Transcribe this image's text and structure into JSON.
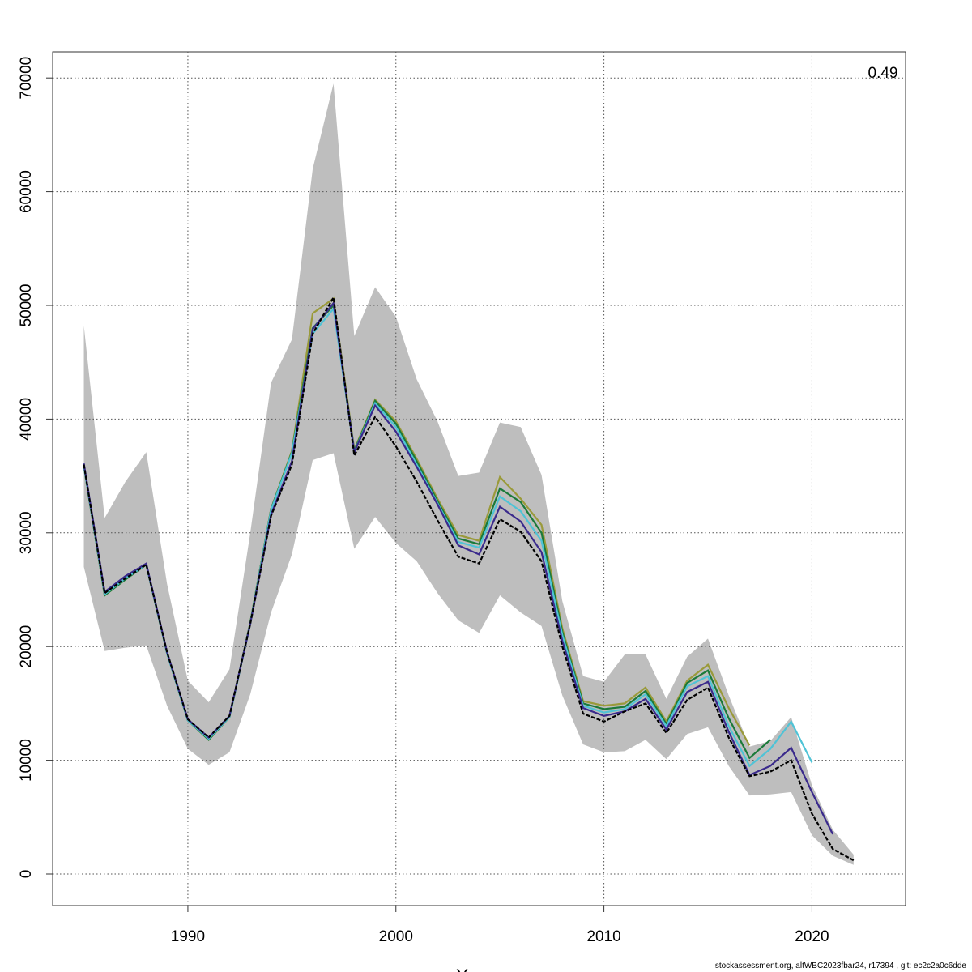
{
  "chart_data": {
    "type": "line",
    "x": [
      1985,
      1986,
      1987,
      1988,
      1989,
      1990,
      1991,
      1992,
      1993,
      1994,
      1995,
      1996,
      1997,
      1998,
      1999,
      2000,
      2001,
      2002,
      2003,
      2004,
      2005,
      2006,
      2007,
      2008,
      2009,
      2010,
      2011,
      2012,
      2013,
      2014,
      2015,
      2016,
      2017,
      2018,
      2019,
      2020,
      2021,
      2022
    ],
    "xlabel": "Years",
    "annotation": "0.49",
    "footer": "stockassessment.org, altWBC2023fbar24, r17394 , git: ec2c2a0c6dde",
    "xlim": [
      1983.5,
      2024.5
    ],
    "ylim": [
      -2778,
      72293
    ],
    "xticks": [
      1990,
      2000,
      2010,
      2020
    ],
    "yticks": [
      0,
      10000,
      20000,
      30000,
      40000,
      50000,
      60000,
      70000
    ],
    "grid": true,
    "band": {
      "color": "#bebebe",
      "lower": [
        27000,
        19600,
        19900,
        20100,
        14800,
        11000,
        9600,
        10700,
        15800,
        23000,
        28100,
        36400,
        37000,
        28600,
        31400,
        29100,
        27500,
        24700,
        22300,
        21200,
        24500,
        23000,
        21800,
        15700,
        11400,
        10700,
        10800,
        11800,
        10100,
        12300,
        12900,
        9500,
        6900,
        7000,
        7200,
        3400,
        1600,
        800
      ],
      "upper": [
        48200,
        31300,
        34500,
        37100,
        25500,
        17000,
        15100,
        18000,
        30000,
        43200,
        47000,
        62000,
        69500,
        47300,
        51600,
        49000,
        43500,
        39800,
        35000,
        35300,
        39700,
        39300,
        35100,
        24000,
        17400,
        16900,
        19300,
        19300,
        15400,
        19100,
        20700,
        15700,
        11200,
        11700,
        13800,
        7800,
        3900,
        1700
      ]
    },
    "series": [
      {
        "color": "#9a9a3a",
        "values": [
          35900,
          24500,
          25900,
          27200,
          19400,
          13500,
          11800,
          13800,
          22100,
          32100,
          37200,
          49300,
          50600,
          37300,
          41700,
          39800,
          36500,
          33000,
          29800,
          29300,
          34900,
          33000,
          30700,
          21600,
          15200,
          14800,
          15000,
          16400,
          13400,
          17000,
          18400,
          14600,
          11300,
          null,
          null,
          null,
          null,
          null
        ]
      },
      {
        "color": "#1b7a3a",
        "values": [
          35900,
          24500,
          25900,
          27200,
          19400,
          13500,
          11800,
          13800,
          22100,
          32100,
          37100,
          48000,
          50000,
          37200,
          41600,
          39600,
          36300,
          32800,
          29500,
          29000,
          33900,
          32700,
          30000,
          21300,
          15000,
          14500,
          14700,
          16100,
          13200,
          16800,
          17900,
          13700,
          10200,
          11800,
          null,
          null,
          null,
          null
        ]
      },
      {
        "color": "#4fc3d6",
        "values": [
          35900,
          24600,
          26000,
          27200,
          19400,
          13500,
          11900,
          13800,
          22000,
          32000,
          37000,
          47500,
          49700,
          37100,
          41400,
          39300,
          36000,
          32600,
          29200,
          28700,
          33200,
          31900,
          29300,
          21000,
          14800,
          14200,
          14500,
          15800,
          13000,
          16500,
          17400,
          13000,
          9500,
          11000,
          13400,
          9800,
          null,
          null
        ]
      },
      {
        "color": "#3a2a8c",
        "values": [
          36100,
          24800,
          26200,
          27300,
          19500,
          13600,
          12000,
          13900,
          22000,
          31600,
          36300,
          47900,
          50200,
          37100,
          41200,
          38900,
          35800,
          32500,
          28900,
          28100,
          32300,
          31000,
          28300,
          20500,
          14600,
          13900,
          14300,
          15400,
          12700,
          16000,
          16900,
          12500,
          8700,
          9500,
          11100,
          7200,
          3500,
          null
        ]
      },
      {
        "color": "#000000",
        "dashed": true,
        "values": [
          36000,
          24700,
          26000,
          27200,
          19500,
          13600,
          12000,
          13900,
          22000,
          31500,
          36000,
          47500,
          50700,
          36800,
          40200,
          37600,
          34500,
          31100,
          27900,
          27300,
          31200,
          30100,
          27500,
          20000,
          14100,
          13400,
          14300,
          15000,
          12400,
          15300,
          16400,
          12000,
          8600,
          9000,
          10000,
          5300,
          2200,
          1200
        ]
      }
    ]
  }
}
